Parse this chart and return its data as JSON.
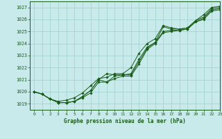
{
  "title": "Graphe pression niveau de la mer (hPa)",
  "bg_color": "#c8eaea",
  "grid_color": "#9ecece",
  "line_color": "#1a5c1a",
  "marker_color": "#1a5c1a",
  "xlim": [
    -0.5,
    23
  ],
  "ylim": [
    1018.5,
    1027.5
  ],
  "yticks": [
    1019,
    1020,
    1021,
    1022,
    1023,
    1024,
    1025,
    1026,
    1027
  ],
  "xticks": [
    0,
    1,
    2,
    3,
    4,
    5,
    6,
    7,
    8,
    9,
    10,
    11,
    12,
    13,
    14,
    15,
    16,
    17,
    18,
    19,
    20,
    21,
    22,
    23
  ],
  "series": [
    [
      1020.0,
      1019.8,
      1019.4,
      1019.1,
      1019.1,
      1019.2,
      1019.5,
      1019.9,
      1020.8,
      1020.8,
      1021.1,
      1021.3,
      1021.3,
      1022.3,
      1023.5,
      1024.0,
      1024.9,
      1025.0,
      1025.1,
      1025.2,
      1025.8,
      1026.0,
      1026.7,
      1026.8
    ],
    [
      1020.0,
      1019.8,
      1019.4,
      1019.1,
      1019.1,
      1019.2,
      1019.6,
      1020.1,
      1021.0,
      1020.8,
      1021.3,
      1021.4,
      1021.4,
      1022.5,
      1023.6,
      1024.1,
      1025.0,
      1025.1,
      1025.1,
      1025.2,
      1025.8,
      1026.1,
      1026.8,
      1026.9
    ],
    [
      1020.0,
      1019.8,
      1019.4,
      1019.1,
      1019.1,
      1019.2,
      1019.6,
      1020.1,
      1021.0,
      1021.5,
      1021.4,
      1021.4,
      1021.5,
      1022.7,
      1023.7,
      1024.1,
      1025.4,
      1025.2,
      1025.2,
      1025.3,
      1025.9,
      1026.2,
      1026.9,
      1027.0
    ],
    [
      1020.0,
      1019.8,
      1019.4,
      1019.2,
      1019.3,
      1019.5,
      1019.9,
      1020.5,
      1021.1,
      1021.2,
      1021.5,
      1021.5,
      1022.0,
      1023.2,
      1024.0,
      1024.4,
      1025.5,
      1025.3,
      1025.2,
      1025.3,
      1025.9,
      1026.4,
      1027.0,
      1027.1
    ]
  ]
}
